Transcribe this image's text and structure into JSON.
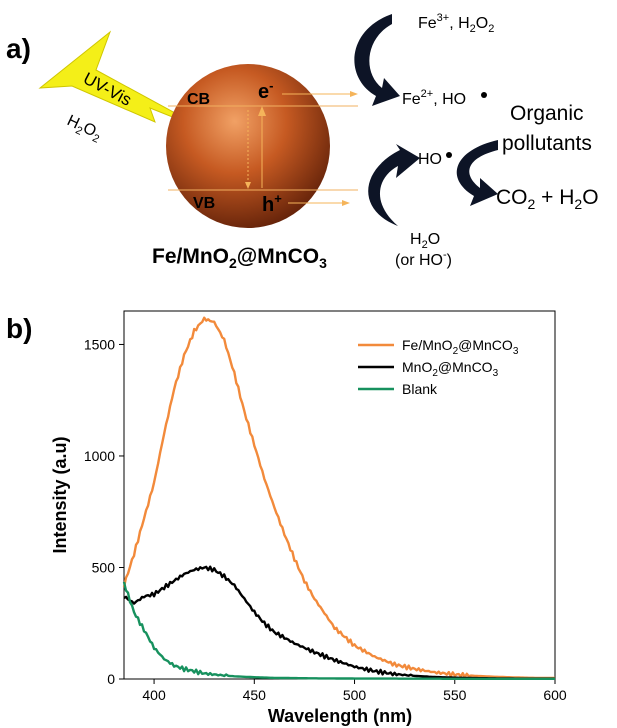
{
  "panel_a": {
    "label": "a)",
    "light": {
      "line1": "UV-Vis",
      "line2": "H",
      "line2_sub": "2",
      "line2_tail": "O",
      "line2_sub2": "2"
    },
    "cb": "CB",
    "vb": "VB",
    "electron": "e",
    "electron_sup": "-",
    "hole": "h",
    "hole_sup": "+",
    "catalyst": {
      "p1": "Fe/MnO",
      "s1": "2",
      "p2": "@MnCO",
      "s2": "3"
    },
    "fe3": {
      "p1": "Fe",
      "sup": "3+",
      "p2": ", H",
      "sub": "2",
      "p3": "O",
      "sub2": "2"
    },
    "fe2": {
      "p1": "Fe",
      "sup": "2+",
      "p2": ", HO"
    },
    "ho_radical": "HO",
    "water": {
      "p1": "H",
      "sub": "2",
      "p2": "O"
    },
    "or_ho": {
      "p1": "(or HO",
      "sup": "-",
      "p2": ")"
    },
    "organic": {
      "line1": "Organic",
      "line2": "pollutants"
    },
    "products": {
      "p1": "CO",
      "sub": "2",
      "p2": " + H",
      "sub2": "2",
      "p3": "O"
    }
  },
  "panel_b": {
    "label": "b)"
  },
  "chart_data": {
    "type": "line",
    "xlabel": "Wavelength (nm)",
    "ylabel": "Intensity (a.u)",
    "xlim": [
      385,
      600
    ],
    "ylim": [
      0,
      1650
    ],
    "xticks": [
      400,
      450,
      500,
      550,
      600
    ],
    "yticks": [
      0,
      500,
      1000,
      1500
    ],
    "legend_position": "top-right",
    "series": [
      {
        "name": "Fe/MnO2@MnCO3",
        "legend": {
          "p1": "Fe/MnO",
          "s1": "2",
          "p2": "@MnCO",
          "s2": "3"
        },
        "color": "#f28a3b",
        "x": [
          385,
          390,
          395,
          400,
          405,
          410,
          415,
          420,
          425,
          430,
          435,
          440,
          445,
          450,
          455,
          460,
          465,
          470,
          475,
          480,
          490,
          500,
          510,
          520,
          530,
          540,
          550,
          560,
          570,
          580,
          590,
          600
        ],
        "y": [
          420,
          560,
          720,
          880,
          1100,
          1300,
          1450,
          1560,
          1615,
          1600,
          1520,
          1370,
          1200,
          1050,
          900,
          770,
          650,
          540,
          440,
          360,
          230,
          150,
          100,
          65,
          45,
          30,
          20,
          14,
          10,
          7,
          5,
          5
        ]
      },
      {
        "name": "MnO2@MnCO3",
        "legend": {
          "p1": "MnO",
          "s1": "2",
          "p2": "@MnCO",
          "s2": "3"
        },
        "color": "#000000",
        "x": [
          385,
          390,
          395,
          400,
          405,
          410,
          415,
          420,
          425,
          430,
          435,
          440,
          445,
          450,
          455,
          460,
          470,
          480,
          490,
          500,
          510,
          520,
          530,
          540,
          550,
          560,
          570,
          580,
          590,
          600
        ],
        "y": [
          370,
          340,
          370,
          380,
          410,
          440,
          470,
          490,
          500,
          490,
          460,
          420,
          360,
          300,
          250,
          210,
          160,
          120,
          85,
          55,
          35,
          22,
          14,
          9,
          6,
          4,
          3,
          2,
          2,
          2
        ]
      },
      {
        "name": "Blank",
        "legend": {
          "p1": "Blank"
        },
        "color": "#17915e",
        "x": [
          385,
          390,
          395,
          400,
          405,
          410,
          415,
          420,
          425,
          430,
          440,
          450,
          460,
          480,
          500,
          550,
          600
        ],
        "y": [
          430,
          300,
          220,
          140,
          90,
          60,
          45,
          35,
          25,
          20,
          12,
          8,
          5,
          3,
          2,
          1,
          1
        ]
      }
    ]
  }
}
